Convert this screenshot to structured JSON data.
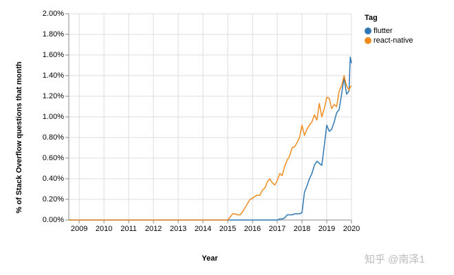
{
  "chart_data": {
    "type": "line",
    "x_label": "Year",
    "y_label": "% of Stack Overflow questions that month",
    "legend_title": "Tag",
    "legend_position": "right",
    "grid": true,
    "xlim": [
      2008.58,
      2020.0
    ],
    "xticks": [
      2009,
      2010,
      2011,
      2012,
      2013,
      2014,
      2015,
      2016,
      2017,
      2018,
      2019,
      2020
    ],
    "ylim": [
      0,
      2.0
    ],
    "yticks": [
      {
        "value": 0,
        "label": "0.00%"
      },
      {
        "value": 0.2,
        "label": "0.20%"
      },
      {
        "value": 0.4,
        "label": "0.40%"
      },
      {
        "value": 0.6,
        "label": "0.60%"
      },
      {
        "value": 0.8,
        "label": "0.80%"
      },
      {
        "value": 1.0,
        "label": "1.00%"
      },
      {
        "value": 1.2,
        "label": "1.20%"
      },
      {
        "value": 1.4,
        "label": "1.40%"
      },
      {
        "value": 1.6,
        "label": "1.60%"
      },
      {
        "value": 1.8,
        "label": "1.80%"
      },
      {
        "value": 2.0,
        "label": "2.00%"
      }
    ],
    "x": [
      2008.58,
      2015.0,
      2015.1,
      2015.2,
      2015.3,
      2015.4,
      2015.5,
      2015.6,
      2015.7,
      2015.8,
      2015.9,
      2016.0,
      2016.1,
      2016.2,
      2016.3,
      2016.4,
      2016.5,
      2016.6,
      2016.7,
      2016.8,
      2016.9,
      2017.0,
      2017.1,
      2017.2,
      2017.3,
      2017.4,
      2017.5,
      2017.6,
      2017.7,
      2017.8,
      2017.9,
      2018.0,
      2018.1,
      2018.2,
      2018.3,
      2018.4,
      2018.5,
      2018.6,
      2018.7,
      2018.8,
      2018.9,
      2019.0,
      2019.1,
      2019.2,
      2019.3,
      2019.4,
      2019.5,
      2019.6,
      2019.7,
      2019.8,
      2019.9,
      2019.95,
      2020.0
    ],
    "series": [
      {
        "name": "flutter",
        "color": "#2f78b4",
        "values": [
          0,
          0,
          0,
          0,
          0,
          0,
          0,
          0,
          0,
          0,
          0,
          0,
          0,
          0,
          0,
          0,
          0,
          0,
          0,
          0,
          0,
          0,
          0.01,
          0.01,
          0.02,
          0.05,
          0.05,
          0.05,
          0.06,
          0.06,
          0.06,
          0.07,
          0.27,
          0.33,
          0.4,
          0.45,
          0.53,
          0.57,
          0.55,
          0.53,
          0.72,
          0.92,
          0.86,
          0.88,
          0.95,
          1.04,
          1.07,
          1.22,
          1.38,
          1.22,
          1.25,
          1.58,
          1.52
        ]
      },
      {
        "name": "react-native",
        "color": "#f08c1e",
        "values": [
          0,
          0,
          0.03,
          0.06,
          0.06,
          0.05,
          0.05,
          0.08,
          0.12,
          0.16,
          0.2,
          0.21,
          0.23,
          0.24,
          0.24,
          0.29,
          0.31,
          0.37,
          0.4,
          0.36,
          0.34,
          0.38,
          0.45,
          0.43,
          0.52,
          0.58,
          0.62,
          0.7,
          0.71,
          0.75,
          0.8,
          0.92,
          0.82,
          0.88,
          0.92,
          0.95,
          1.02,
          0.97,
          1.13,
          1.0,
          1.08,
          1.19,
          1.18,
          1.08,
          1.12,
          1.1,
          1.25,
          1.3,
          1.4,
          1.3,
          1.26,
          1.29,
          1.3
        ]
      }
    ],
    "watermark": "知乎 @南泽1"
  }
}
